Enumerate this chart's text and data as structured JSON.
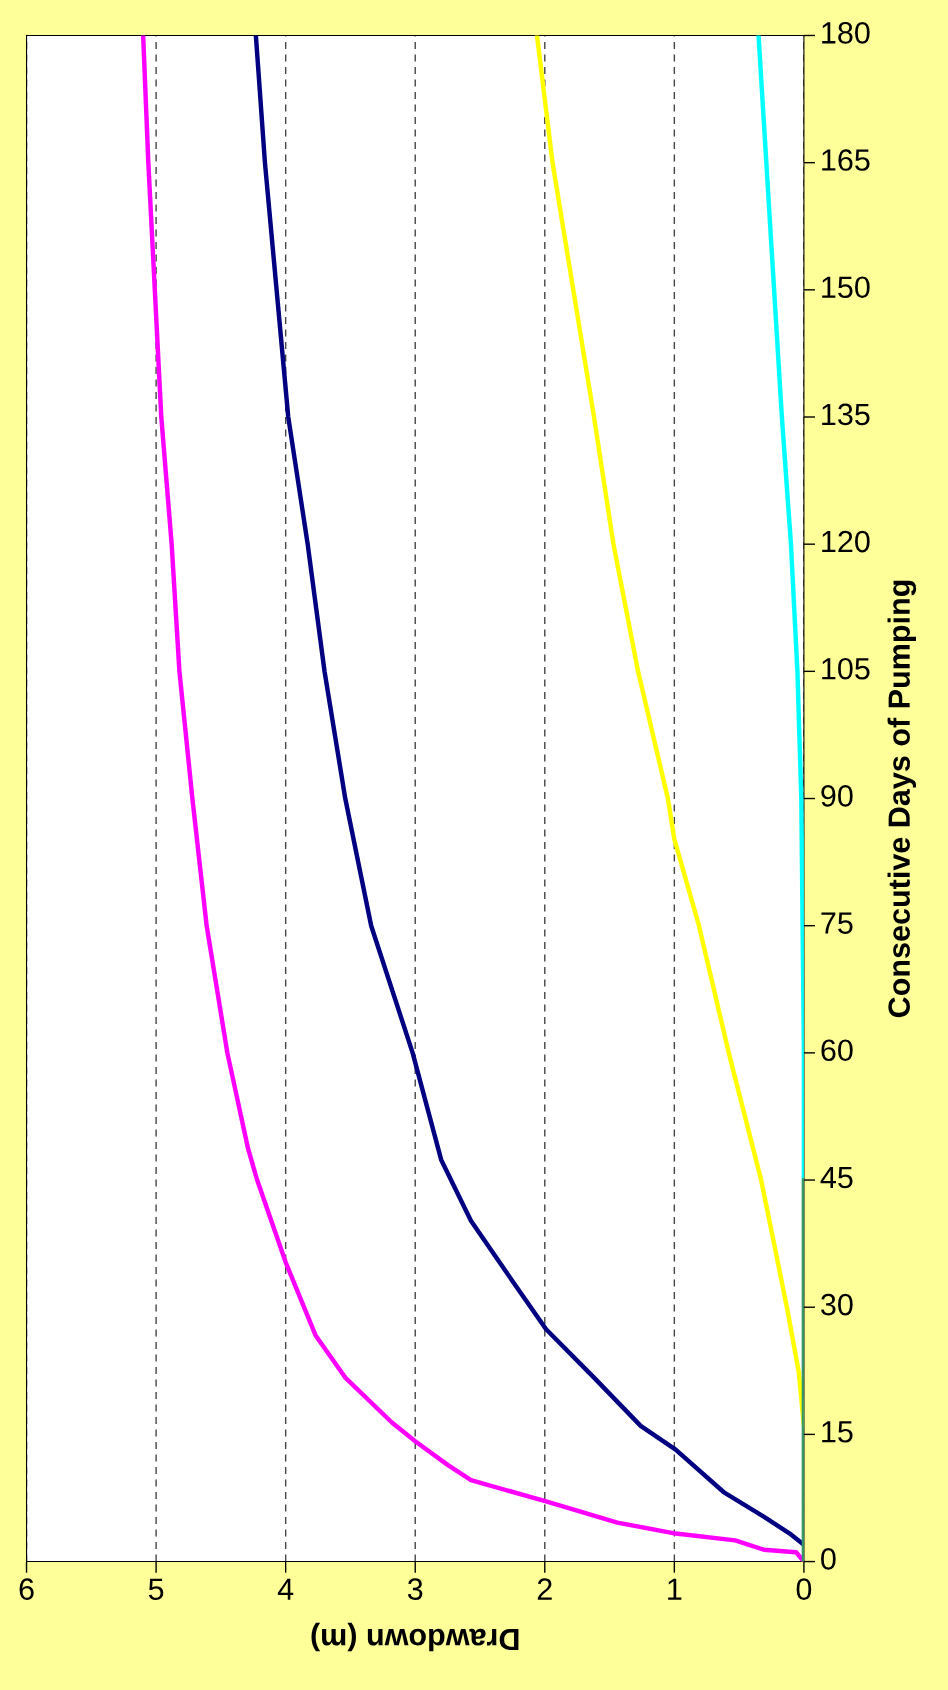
{
  "chart_data": {
    "type": "line",
    "xlabel": "Drawdown (m)",
    "ylabel": "Consecutive Days of Pumping",
    "xlim": [
      6,
      0
    ],
    "xticks": [
      0,
      1,
      2,
      3,
      4,
      5,
      6
    ],
    "ylim": [
      0,
      180
    ],
    "yticks": [
      0,
      15,
      30,
      45,
      60,
      75,
      90,
      105,
      120,
      135,
      150,
      165,
      180
    ],
    "grid": "x",
    "line_style": "solid",
    "marker": "none",
    "series": [
      {
        "color": "#ff00ff",
        "x": [
          0,
          0.06,
          0.31,
          0.53,
          0.99,
          1.44,
          1.99,
          2.57,
          2.75,
          3.0,
          3.18,
          3.54,
          3.77,
          4.0,
          4.22,
          4.29,
          4.45,
          4.61,
          4.72,
          4.82,
          4.88,
          4.96,
          5.01,
          5.06,
          5.1
        ],
        "values": [
          0,
          1.1,
          1.4,
          2.5,
          3.3,
          4.6,
          7.1,
          9.6,
          11.4,
          14.2,
          16.4,
          21.7,
          26.7,
          35.3,
          45,
          48.7,
          60,
          75,
          90,
          105,
          120,
          135,
          150,
          165,
          180
        ]
      },
      {
        "color": "#000080",
        "x": [
          0.01,
          0.1,
          0.31,
          0.62,
          0.99,
          1.26,
          1.62,
          1.99,
          2.25,
          2.57,
          2.8,
          3.02,
          3.34,
          3.54,
          3.7,
          3.83,
          3.98,
          4.07,
          4.16,
          4.23
        ],
        "values": [
          2.1,
          3.2,
          5.3,
          8.2,
          13.2,
          16,
          21.7,
          27.4,
          33.1,
          40.2,
          47.4,
          60,
          75,
          90,
          105,
          120,
          135,
          150,
          165,
          180
        ]
      },
      {
        "color": "#ffff00",
        "x": [
          0,
          0.04,
          0.13,
          0.22,
          0.33,
          0.58,
          0.81,
          1.0,
          1.05,
          1.28,
          1.47,
          1.62,
          1.78,
          1.94,
          2.06
        ],
        "values": [
          16,
          22.4,
          29.9,
          36.7,
          45,
          60,
          75,
          85.2,
          90,
          105,
          120,
          135,
          150,
          165,
          180
        ]
      },
      {
        "color": "#00ffff",
        "x": [
          0,
          0,
          0.01,
          0.02,
          0.05,
          0.1,
          0.17,
          0.23,
          0.29,
          0.35
        ],
        "values": [
          45,
          60,
          75,
          90,
          105,
          120,
          135,
          150,
          165,
          180
        ]
      },
      {
        "color": "#339966",
        "x": [
          0,
          0,
          0,
          0
        ],
        "values": [
          0,
          15,
          30,
          45
        ]
      }
    ]
  }
}
